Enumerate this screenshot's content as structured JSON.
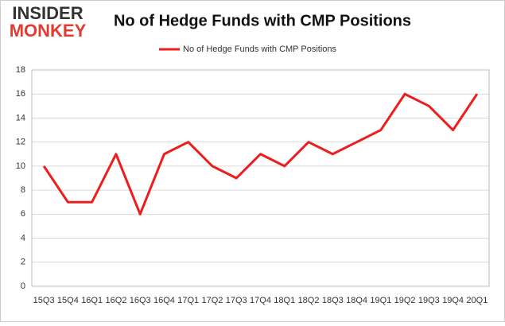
{
  "logo": [
    "INSIDER",
    "MONKEY"
  ],
  "chart_data": {
    "type": "line",
    "title": "No of Hedge Funds with CMP Positions",
    "categories": [
      "15Q3",
      "15Q4",
      "16Q1",
      "16Q2",
      "16Q3",
      "16Q4",
      "17Q1",
      "17Q2",
      "17Q3",
      "17Q4",
      "18Q1",
      "18Q2",
      "18Q3",
      "18Q4",
      "19Q1",
      "19Q2",
      "19Q3",
      "19Q4",
      "20Q1"
    ],
    "series": [
      {
        "name": "No of Hedge Funds with CMP Positions",
        "color": "#ee1c1c",
        "values": [
          10,
          7,
          7,
          11,
          6,
          11,
          12,
          10,
          9,
          11,
          10,
          12,
          11,
          12,
          13,
          16,
          15,
          13,
          16
        ]
      }
    ],
    "ylim": [
      0,
      18
    ],
    "yticks": [
      0,
      2,
      4,
      6,
      8,
      10,
      12,
      14,
      16,
      18
    ],
    "grid": true,
    "legend": "top"
  }
}
